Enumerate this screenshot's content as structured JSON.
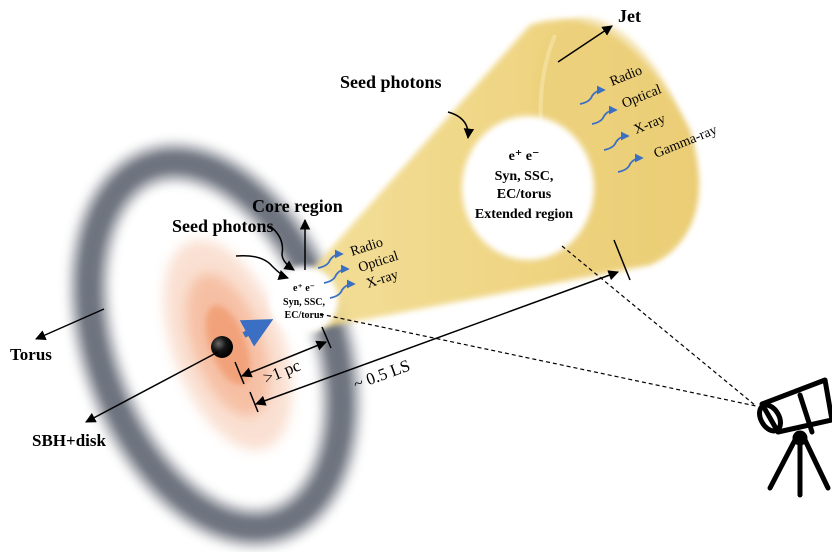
{
  "labels": {
    "jet": "Jet",
    "seed_photons_top": "Seed photons",
    "seed_photons_left": "Seed photons",
    "core_region": "Core region",
    "torus": "Torus",
    "sbh_disk": "SBH+disk",
    "distance_core": ">1 pc",
    "distance_extended": "~ 0.5 LS"
  },
  "core_blob": {
    "particles": "e⁺  e⁻",
    "line1": "Syn, SSC,",
    "line2": "EC/torus",
    "bands": [
      "Radio",
      "Optical",
      "X-ray"
    ]
  },
  "extended_blob": {
    "particles": "e⁺    e⁻",
    "line1": "Syn, SSC,",
    "line2": "EC/torus",
    "line3": "Extended region",
    "bands": [
      "Radio",
      "Optical",
      "X-ray",
      "Gamma-ray"
    ]
  },
  "icons": {
    "telescope": "telescope-icon",
    "black_hole": "black-hole-icon"
  },
  "colors": {
    "jet_fill": "#f0cf6a",
    "torus_ring": "#6f7580",
    "disk_glow": "#f3a57c",
    "emission_arrow": "#3a6fc4"
  }
}
